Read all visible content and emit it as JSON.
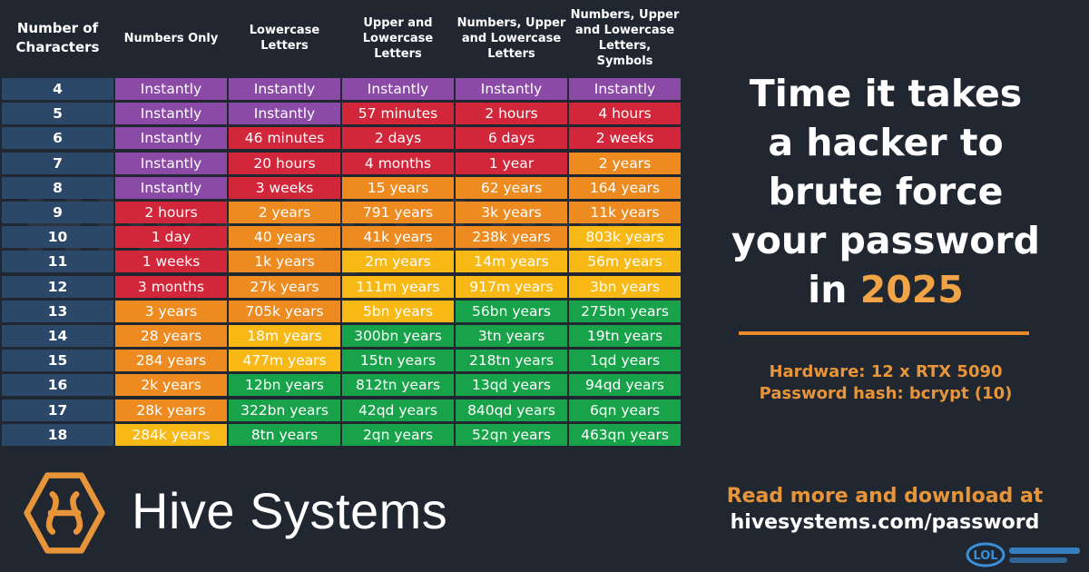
{
  "table": {
    "headers": [
      "Number of Characters",
      "Numbers Only",
      "Lowercase Letters",
      "Upper and Lowercase Letters",
      "Numbers, Upper and Lowercase Letters",
      "Numbers, Upper and Lowercase Letters, Symbols"
    ],
    "rows": [
      {
        "chars": "4",
        "values": [
          "Instantly",
          "Instantly",
          "Instantly",
          "Instantly",
          "Instantly"
        ]
      },
      {
        "chars": "5",
        "values": [
          "Instantly",
          "Instantly",
          "57 minutes",
          "2 hours",
          "4 hours"
        ]
      },
      {
        "chars": "6",
        "values": [
          "Instantly",
          "46 minutes",
          "2 days",
          "6 days",
          "2 weeks"
        ]
      },
      {
        "chars": "7",
        "values": [
          "Instantly",
          "20 hours",
          "4 months",
          "1 year",
          "2 years"
        ]
      },
      {
        "chars": "8",
        "values": [
          "Instantly",
          "3 weeks",
          "15 years",
          "62 years",
          "164 years"
        ]
      },
      {
        "chars": "9",
        "values": [
          "2 hours",
          "2 years",
          "791 years",
          "3k years",
          "11k years"
        ]
      },
      {
        "chars": "10",
        "values": [
          "1 day",
          "40 years",
          "41k years",
          "238k years",
          "803k years"
        ]
      },
      {
        "chars": "11",
        "values": [
          "1 weeks",
          "1k years",
          "2m years",
          "14m years",
          "56m years"
        ]
      },
      {
        "chars": "12",
        "values": [
          "3 months",
          "27k years",
          "111m years",
          "917m years",
          "3bn years"
        ]
      },
      {
        "chars": "13",
        "values": [
          "3 years",
          "705k years",
          "5bn years",
          "56bn years",
          "275bn years"
        ]
      },
      {
        "chars": "14",
        "values": [
          "28 years",
          "18m years",
          "300bn years",
          "3tn years",
          "19tn years"
        ]
      },
      {
        "chars": "15",
        "values": [
          "284 years",
          "477m years",
          "15tn years",
          "218tn years",
          "1qd years"
        ]
      },
      {
        "chars": "16",
        "values": [
          "2k years",
          "12bn years",
          "812tn years",
          "13qd years",
          "94qd years"
        ]
      },
      {
        "chars": "17",
        "values": [
          "28k years",
          "322bn years",
          "42qd years",
          "840qd years",
          "6qn years"
        ]
      },
      {
        "chars": "18",
        "values": [
          "284k years",
          "8tn years",
          "2qn years",
          "52qn years",
          "463qn years"
        ]
      }
    ],
    "row_colors": [
      [
        "purple",
        "purple",
        "purple",
        "purple",
        "purple"
      ],
      [
        "purple",
        "purple",
        "red",
        "red",
        "red"
      ],
      [
        "purple",
        "red",
        "red",
        "red",
        "red"
      ],
      [
        "purple",
        "red",
        "red",
        "red",
        "orange"
      ],
      [
        "purple",
        "red",
        "orange",
        "orange",
        "orange"
      ],
      [
        "red",
        "orange",
        "orange",
        "orange",
        "orange"
      ],
      [
        "red",
        "orange",
        "orange",
        "orange",
        "yellow"
      ],
      [
        "red",
        "orange",
        "yellow",
        "yellow",
        "yellow"
      ],
      [
        "red",
        "orange",
        "yellow",
        "yellow",
        "yellow"
      ],
      [
        "orange",
        "orange",
        "yellow",
        "green",
        "green"
      ],
      [
        "orange",
        "yellow",
        "green",
        "green",
        "green"
      ],
      [
        "orange",
        "yellow",
        "green",
        "green",
        "green"
      ],
      [
        "orange",
        "green",
        "green",
        "green",
        "green"
      ],
      [
        "orange",
        "green",
        "green",
        "green",
        "green"
      ],
      [
        "yellow",
        "green",
        "green",
        "green",
        "green"
      ]
    ],
    "colors": {
      "purple": "#8b4aa6",
      "red": "#d2263a",
      "orange": "#ee8b20",
      "yellow": "#f8b917",
      "green": "#18a34a",
      "number_column": "#2c4868"
    }
  },
  "title": {
    "line1": "Time it takes",
    "line2": "a hacker to",
    "line3": "brute force",
    "line4": "your password",
    "line5_prefix": "in ",
    "year": "2025"
  },
  "hardware": {
    "hardware_line": "Hardware: 12 x RTX 5090",
    "hash_line": "Password hash: bcrypt (10)"
  },
  "footer": {
    "brand": "Hive Systems",
    "read_more": "Read more and download at",
    "url": "hivesystems.com/password"
  },
  "watermark": {
    "faint_text": "Hive Systems",
    "corner_text": "LOL"
  },
  "accent_color": "#e8953a",
  "background_color": "#202731"
}
